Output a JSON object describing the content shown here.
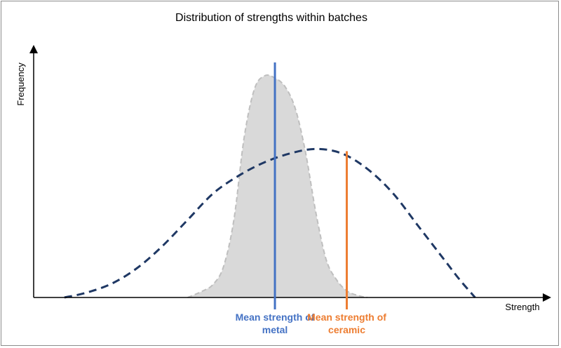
{
  "chart_data": {
    "type": "line",
    "title": "Distribution  of strengths  within  batches",
    "xlabel": "Strength",
    "ylabel": "Frequency",
    "xlim": [
      0,
      100
    ],
    "ylim": [
      0,
      100
    ],
    "series": [
      {
        "name": "metal",
        "style": "filled-dashed-gray",
        "x": [
          30,
          33,
          35,
          37,
          39,
          41,
          43,
          45,
          47,
          49,
          51,
          53,
          55,
          57,
          59,
          61,
          63,
          65
        ],
        "y": [
          0,
          3,
          6,
          14,
          35,
          72,
          94,
          100,
          99,
          95,
          85,
          65,
          38,
          17,
          8,
          3,
          1,
          0
        ]
      },
      {
        "name": "ceramic",
        "style": "dashed-navy",
        "x": [
          6,
          10,
          15,
          20,
          25,
          30,
          35,
          40,
          45,
          50,
          55,
          60,
          65,
          70,
          75,
          80,
          83,
          86
        ],
        "y": [
          0,
          2,
          6,
          13,
          23,
          35,
          47,
          55,
          61,
          65,
          67,
          65,
          58,
          47,
          32,
          17,
          8,
          0
        ]
      }
    ],
    "markers": [
      {
        "name": "mean-metal",
        "x": 47,
        "height": 106,
        "color": "#4472c4",
        "label_line1": "Mean strength of",
        "label_line2": "metal"
      },
      {
        "name": "mean-ceramic",
        "x": 61,
        "height": 66,
        "color": "#ed7d31",
        "label_line1": "Mean strength of",
        "label_line2": "ceramic"
      }
    ]
  }
}
